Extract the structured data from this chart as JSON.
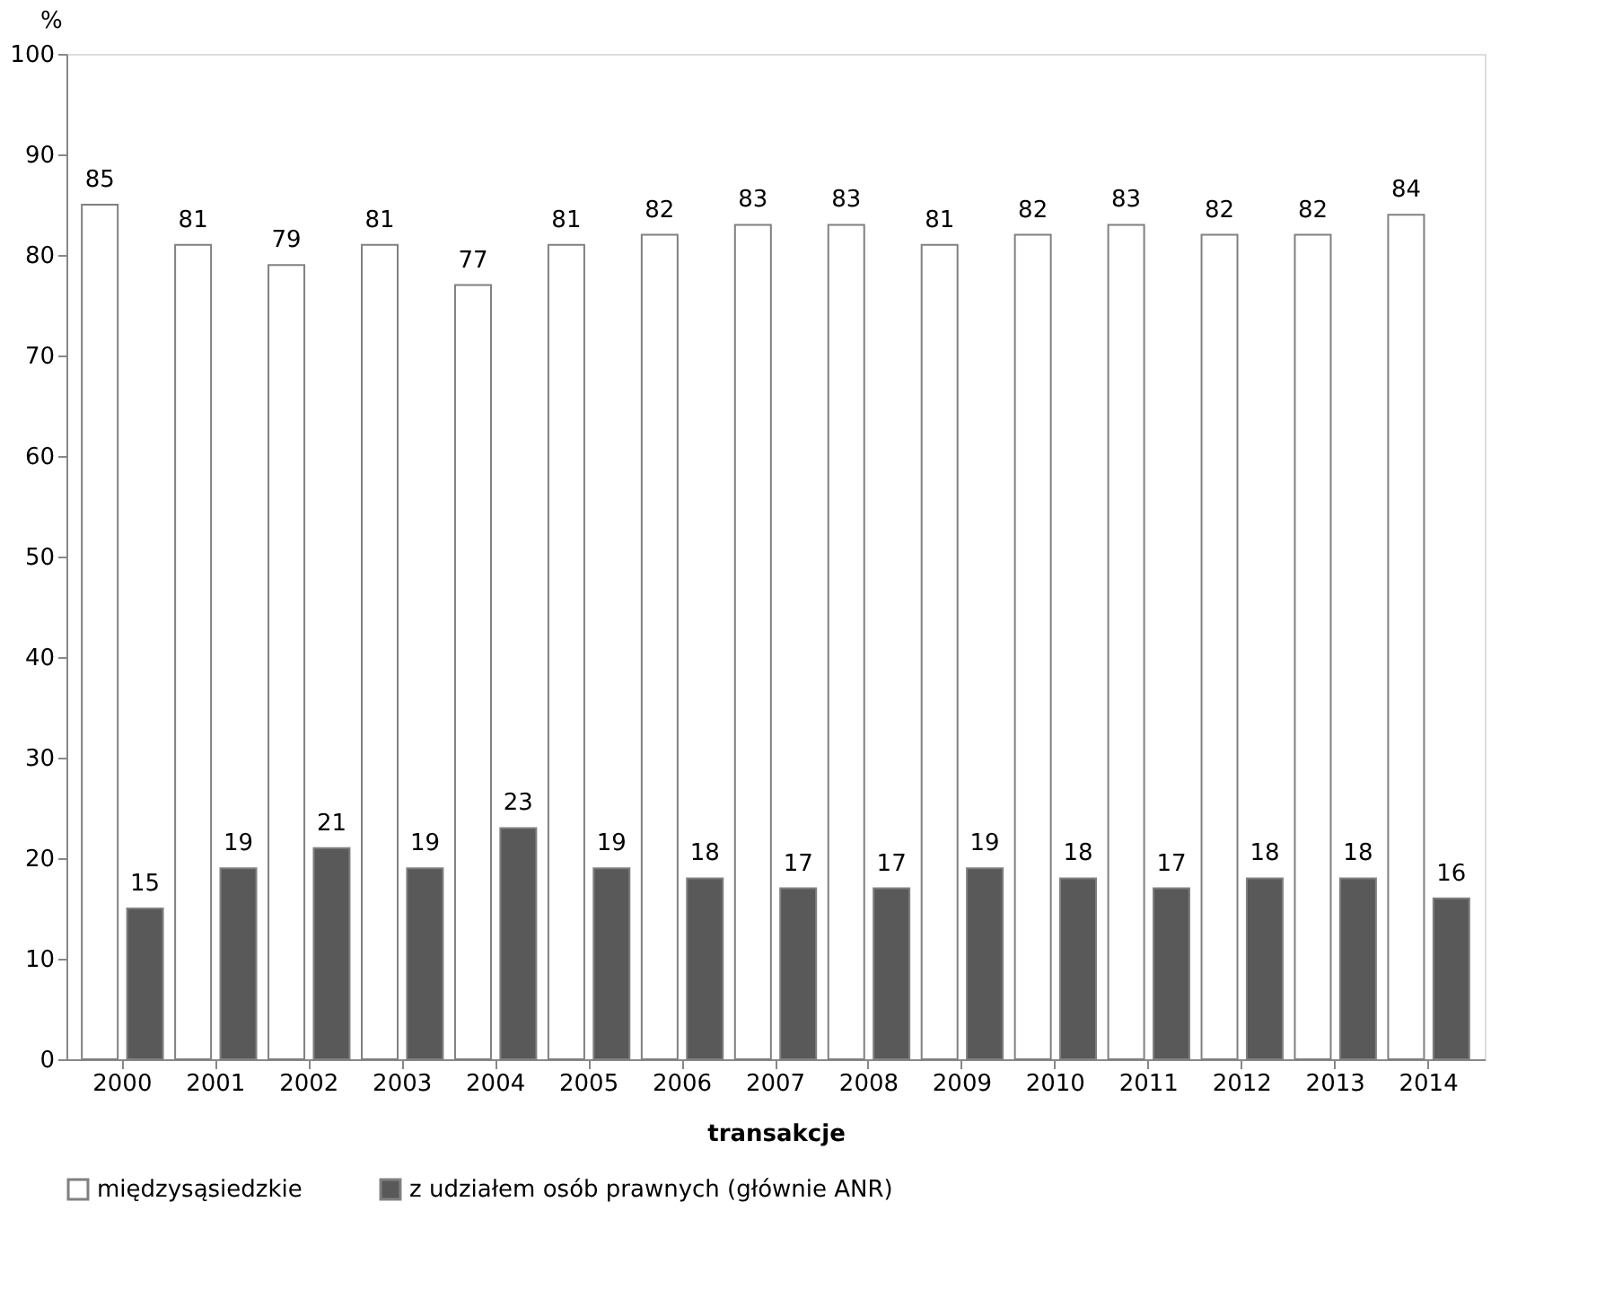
{
  "chart_data": {
    "type": "bar",
    "xlabel": "transakcje",
    "ylabel": "%",
    "categories": [
      "2000",
      "2001",
      "2002",
      "2003",
      "2004",
      "2005",
      "2006",
      "2007",
      "2008",
      "2009",
      "2010",
      "2011",
      "2012",
      "2013",
      "2014"
    ],
    "series": [
      {
        "name": "międzysąsiedzkie",
        "color": "#ffffff",
        "values": [
          85,
          81,
          79,
          81,
          77,
          81,
          82,
          83,
          83,
          81,
          82,
          83,
          82,
          82,
          84
        ]
      },
      {
        "name": "z udziałem osób prawnych (głównie ANR)",
        "color": "#595959",
        "values": [
          15,
          19,
          21,
          19,
          23,
          19,
          18,
          17,
          17,
          19,
          18,
          17,
          18,
          18,
          16
        ]
      }
    ],
    "ylim": [
      0,
      100
    ],
    "yticks": [
      0,
      10,
      20,
      30,
      40,
      50,
      60,
      70,
      80,
      90,
      100
    ],
    "data_labels": true,
    "grid": false,
    "legend": "bottom"
  }
}
